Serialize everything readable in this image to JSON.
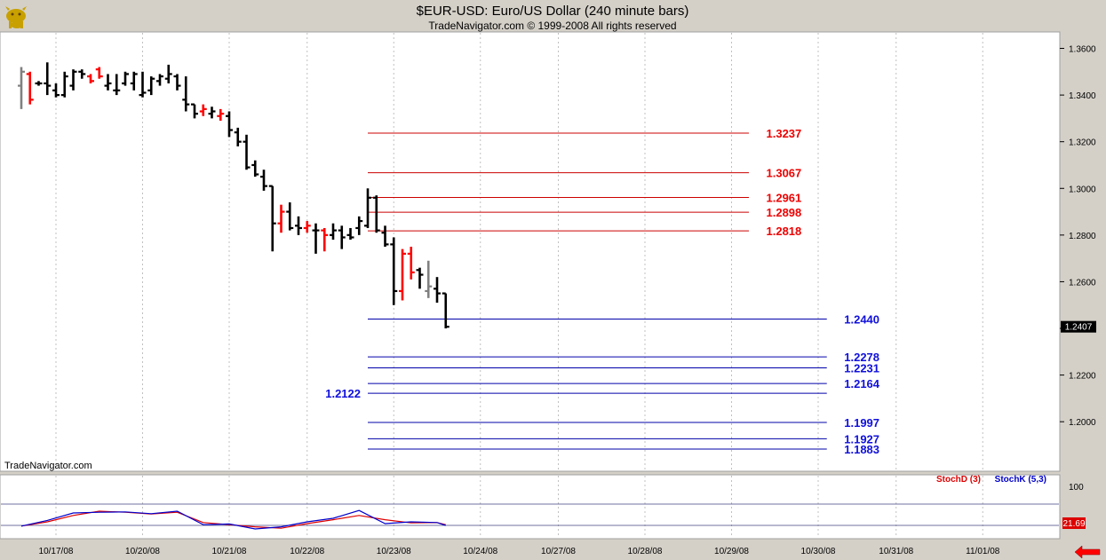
{
  "title": "$EUR-USD:  Euro/US Dollar  (240 minute bars)",
  "subtitle": "TradeNavigator.com © 1999-2008 All rights reserved",
  "watermark": "TradeNavigator.com",
  "logo_icon": "trade-navigator-bull-logo",
  "nav_arrow_icon": "left-arrow-icon",
  "colors": {
    "up_bar": "#000000",
    "down_bar": "#ff0000",
    "neutral_bar": "#808080",
    "resistance_line": "#cc0000",
    "support_line": "#0000aa",
    "stoch_d": "#dd0000",
    "stoch_k": "#0000cc",
    "panel_bg": "#ffffff",
    "frame_bg": "#d4d0c8"
  },
  "chart_data": [
    {
      "type": "ohlc",
      "y_axis_side": "right",
      "ylim": [
        1.186,
        1.364
      ],
      "yticks": [
        "1.3600",
        "1.3400",
        "1.3200",
        "1.3000",
        "1.2800",
        "1.2600",
        "1.2400",
        "1.2200",
        "1.2000"
      ],
      "ytick_values": [
        1.36,
        1.34,
        1.32,
        1.3,
        1.28,
        1.26,
        1.24,
        1.22,
        1.2
      ],
      "last_price_label": "1.2407",
      "last_price": 1.2407,
      "x_dates": [
        "10/17/08",
        "10/20/08",
        "10/21/08",
        "10/22/08",
        "10/23/08",
        "10/24/08",
        "10/27/08",
        "10/28/08",
        "10/29/08",
        "10/30/08",
        "10/31/08",
        "11/01/08"
      ],
      "x_date_index": [
        4,
        14,
        24,
        33,
        43,
        53,
        62,
        72,
        82,
        92,
        101,
        111
      ],
      "bars": [
        {
          "i": 0,
          "o": 1.344,
          "h": 1.352,
          "l": 1.334,
          "c": 1.35,
          "col": "g"
        },
        {
          "i": 1,
          "o": 1.349,
          "h": 1.35,
          "l": 1.336,
          "c": 1.338,
          "col": "r"
        },
        {
          "i": 2,
          "o": 1.345,
          "h": 1.346,
          "l": 1.344,
          "c": 1.345,
          "col": "k"
        },
        {
          "i": 3,
          "o": 1.345,
          "h": 1.354,
          "l": 1.34,
          "c": 1.344,
          "col": "k"
        },
        {
          "i": 4,
          "o": 1.342,
          "h": 1.345,
          "l": 1.339,
          "c": 1.34,
          "col": "k"
        },
        {
          "i": 5,
          "o": 1.34,
          "h": 1.35,
          "l": 1.339,
          "c": 1.348,
          "col": "k"
        },
        {
          "i": 6,
          "o": 1.344,
          "h": 1.351,
          "l": 1.342,
          "c": 1.35,
          "col": "k"
        },
        {
          "i": 7,
          "o": 1.35,
          "h": 1.351,
          "l": 1.347,
          "c": 1.349,
          "col": "k"
        },
        {
          "i": 8,
          "o": 1.348,
          "h": 1.349,
          "l": 1.345,
          "c": 1.346,
          "col": "r"
        },
        {
          "i": 9,
          "o": 1.351,
          "h": 1.352,
          "l": 1.347,
          "c": 1.348,
          "col": "r"
        },
        {
          "i": 10,
          "o": 1.344,
          "h": 1.349,
          "l": 1.342,
          "c": 1.345,
          "col": "k"
        },
        {
          "i": 11,
          "o": 1.342,
          "h": 1.349,
          "l": 1.34,
          "c": 1.342,
          "col": "k"
        },
        {
          "i": 12,
          "o": 1.345,
          "h": 1.35,
          "l": 1.344,
          "c": 1.349,
          "col": "k"
        },
        {
          "i": 13,
          "o": 1.345,
          "h": 1.35,
          "l": 1.342,
          "c": 1.349,
          "col": "k"
        },
        {
          "i": 14,
          "o": 1.34,
          "h": 1.35,
          "l": 1.339,
          "c": 1.341,
          "col": "k"
        },
        {
          "i": 15,
          "o": 1.342,
          "h": 1.348,
          "l": 1.34,
          "c": 1.347,
          "col": "k"
        },
        {
          "i": 16,
          "o": 1.346,
          "h": 1.349,
          "l": 1.344,
          "c": 1.348,
          "col": "k"
        },
        {
          "i": 17,
          "o": 1.347,
          "h": 1.353,
          "l": 1.345,
          "c": 1.349,
          "col": "k"
        },
        {
          "i": 18,
          "o": 1.348,
          "h": 1.349,
          "l": 1.342,
          "c": 1.344,
          "col": "k"
        },
        {
          "i": 19,
          "o": 1.338,
          "h": 1.348,
          "l": 1.333,
          "c": 1.336,
          "col": "k"
        },
        {
          "i": 20,
          "o": 1.336,
          "h": 1.336,
          "l": 1.33,
          "c": 1.332,
          "col": "k"
        },
        {
          "i": 21,
          "o": 1.333,
          "h": 1.336,
          "l": 1.331,
          "c": 1.334,
          "col": "r"
        },
        {
          "i": 22,
          "o": 1.332,
          "h": 1.335,
          "l": 1.33,
          "c": 1.333,
          "col": "k"
        },
        {
          "i": 23,
          "o": 1.331,
          "h": 1.334,
          "l": 1.329,
          "c": 1.332,
          "col": "r"
        },
        {
          "i": 24,
          "o": 1.331,
          "h": 1.333,
          "l": 1.322,
          "c": 1.325,
          "col": "k"
        },
        {
          "i": 25,
          "o": 1.324,
          "h": 1.326,
          "l": 1.318,
          "c": 1.32,
          "col": "k"
        },
        {
          "i": 26,
          "o": 1.32,
          "h": 1.323,
          "l": 1.308,
          "c": 1.309,
          "col": "k"
        },
        {
          "i": 27,
          "o": 1.31,
          "h": 1.312,
          "l": 1.305,
          "c": 1.306,
          "col": "k"
        },
        {
          "i": 28,
          "o": 1.305,
          "h": 1.308,
          "l": 1.299,
          "c": 1.301,
          "col": "k"
        },
        {
          "i": 29,
          "o": 1.301,
          "h": 1.301,
          "l": 1.273,
          "c": 1.285,
          "col": "k"
        },
        {
          "i": 30,
          "o": 1.285,
          "h": 1.293,
          "l": 1.281,
          "c": 1.29,
          "col": "r"
        },
        {
          "i": 31,
          "o": 1.29,
          "h": 1.294,
          "l": 1.282,
          "c": 1.283,
          "col": "k"
        },
        {
          "i": 32,
          "o": 1.284,
          "h": 1.288,
          "l": 1.28,
          "c": 1.283,
          "col": "k"
        },
        {
          "i": 33,
          "o": 1.283,
          "h": 1.286,
          "l": 1.281,
          "c": 1.284,
          "col": "r"
        },
        {
          "i": 34,
          "o": 1.282,
          "h": 1.285,
          "l": 1.272,
          "c": 1.282,
          "col": "k"
        },
        {
          "i": 35,
          "o": 1.282,
          "h": 1.283,
          "l": 1.273,
          "c": 1.28,
          "col": "r"
        },
        {
          "i": 36,
          "o": 1.28,
          "h": 1.285,
          "l": 1.278,
          "c": 1.282,
          "col": "k"
        },
        {
          "i": 37,
          "o": 1.282,
          "h": 1.284,
          "l": 1.274,
          "c": 1.279,
          "col": "k"
        },
        {
          "i": 38,
          "o": 1.28,
          "h": 1.283,
          "l": 1.278,
          "c": 1.279,
          "col": "k"
        },
        {
          "i": 39,
          "o": 1.283,
          "h": 1.288,
          "l": 1.28,
          "c": 1.286,
          "col": "k"
        },
        {
          "i": 40,
          "o": 1.284,
          "h": 1.3,
          "l": 1.283,
          "c": 1.296,
          "col": "k"
        },
        {
          "i": 41,
          "o": 1.296,
          "h": 1.297,
          "l": 1.281,
          "c": 1.282,
          "col": "k"
        },
        {
          "i": 42,
          "o": 1.281,
          "h": 1.284,
          "l": 1.275,
          "c": 1.276,
          "col": "k"
        },
        {
          "i": 43,
          "o": 1.276,
          "h": 1.279,
          "l": 1.25,
          "c": 1.256,
          "col": "k"
        },
        {
          "i": 44,
          "o": 1.256,
          "h": 1.274,
          "l": 1.252,
          "c": 1.272,
          "col": "r"
        },
        {
          "i": 45,
          "o": 1.272,
          "h": 1.275,
          "l": 1.261,
          "c": 1.264,
          "col": "r"
        },
        {
          "i": 46,
          "o": 1.265,
          "h": 1.266,
          "l": 1.257,
          "c": 1.263,
          "col": "k"
        },
        {
          "i": 47,
          "o": 1.256,
          "h": 1.269,
          "l": 1.253,
          "c": 1.258,
          "col": "g"
        },
        {
          "i": 48,
          "o": 1.257,
          "h": 1.262,
          "l": 1.251,
          "c": 1.255,
          "col": "k"
        },
        {
          "i": 49,
          "o": 1.255,
          "h": 1.255,
          "l": 1.24,
          "c": 1.2407,
          "col": "k"
        }
      ],
      "levels": [
        {
          "label": "1.3237",
          "value": 1.3237,
          "kind": "resistance",
          "x0": 40,
          "x1": 84,
          "label_at": 86
        },
        {
          "label": "1.3067",
          "value": 1.3067,
          "kind": "resistance",
          "x0": 40,
          "x1": 84,
          "label_at": 86
        },
        {
          "label": "1.2961",
          "value": 1.2961,
          "kind": "resistance",
          "x0": 40,
          "x1": 84,
          "label_at": 86
        },
        {
          "label": "1.2898",
          "value": 1.2898,
          "kind": "resistance",
          "x0": 40,
          "x1": 84,
          "label_at": 86
        },
        {
          "label": "1.2818",
          "value": 1.2818,
          "kind": "resistance",
          "x0": 40,
          "x1": 84,
          "label_at": 86
        },
        {
          "label": "1.2440",
          "value": 1.244,
          "kind": "support",
          "x0": 40,
          "x1": 93,
          "label_at": 95
        },
        {
          "label": "1.2278",
          "value": 1.2278,
          "kind": "support",
          "x0": 40,
          "x1": 93,
          "label_at": 95
        },
        {
          "label": "1.2231",
          "value": 1.2231,
          "kind": "support",
          "x0": 40,
          "x1": 93,
          "label_at": 95
        },
        {
          "label": "1.2164",
          "value": 1.2164,
          "kind": "support",
          "x0": 40,
          "x1": 93,
          "label_at": 95
        },
        {
          "label": "1.2122",
          "value": 1.2122,
          "kind": "support",
          "x0": 40,
          "x1": 93,
          "label_at": 36
        },
        {
          "label": "1.1997",
          "value": 1.1997,
          "kind": "support",
          "x0": 40,
          "x1": 93,
          "label_at": 95
        },
        {
          "label": "1.1927",
          "value": 1.1927,
          "kind": "support",
          "x0": 40,
          "x1": 93,
          "label_at": 95
        },
        {
          "label": "1.1883",
          "value": 1.1883,
          "kind": "support",
          "x0": 40,
          "x1": 93,
          "label_at": 95
        }
      ]
    },
    {
      "type": "line",
      "panel": "stochastic",
      "ylim": [
        0,
        100
      ],
      "yticks": [
        "100"
      ],
      "ytick_values": [
        100
      ],
      "levels": [
        80,
        20
      ],
      "last_value_label": "21.69",
      "last_value": 21.69,
      "x": [
        0,
        3,
        6,
        9,
        12,
        15,
        18,
        21,
        24,
        27,
        30,
        33,
        36,
        39,
        42,
        45,
        48,
        49
      ],
      "series": [
        {
          "name": "StochD (3)",
          "values": [
            18,
            30,
            48,
            60,
            57,
            52,
            57,
            28,
            22,
            16,
            12,
            25,
            36,
            48,
            36,
            27,
            28,
            22
          ]
        },
        {
          "name": "StochK (5,3)",
          "values": [
            18,
            34,
            55,
            57,
            58,
            53,
            60,
            22,
            24,
            10,
            16,
            30,
            40,
            62,
            25,
            30,
            28,
            20
          ]
        }
      ]
    }
  ]
}
